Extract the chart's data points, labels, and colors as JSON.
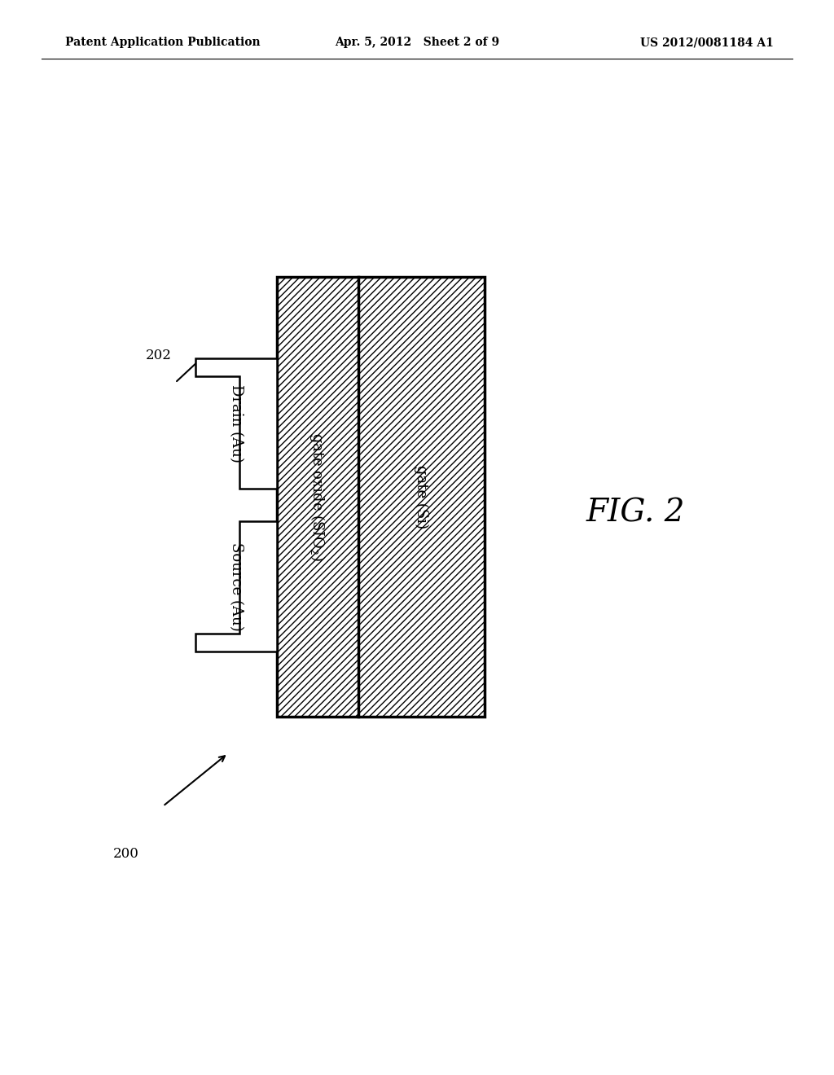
{
  "title_left": "Patent Application Publication",
  "title_center": "Apr. 5, 2012   Sheet 2 of 9",
  "title_right": "US 2012/0081184 A1",
  "fig_label": "FIG. 2",
  "ref_200": "200",
  "ref_202": "202",
  "bg_color": "#ffffff"
}
